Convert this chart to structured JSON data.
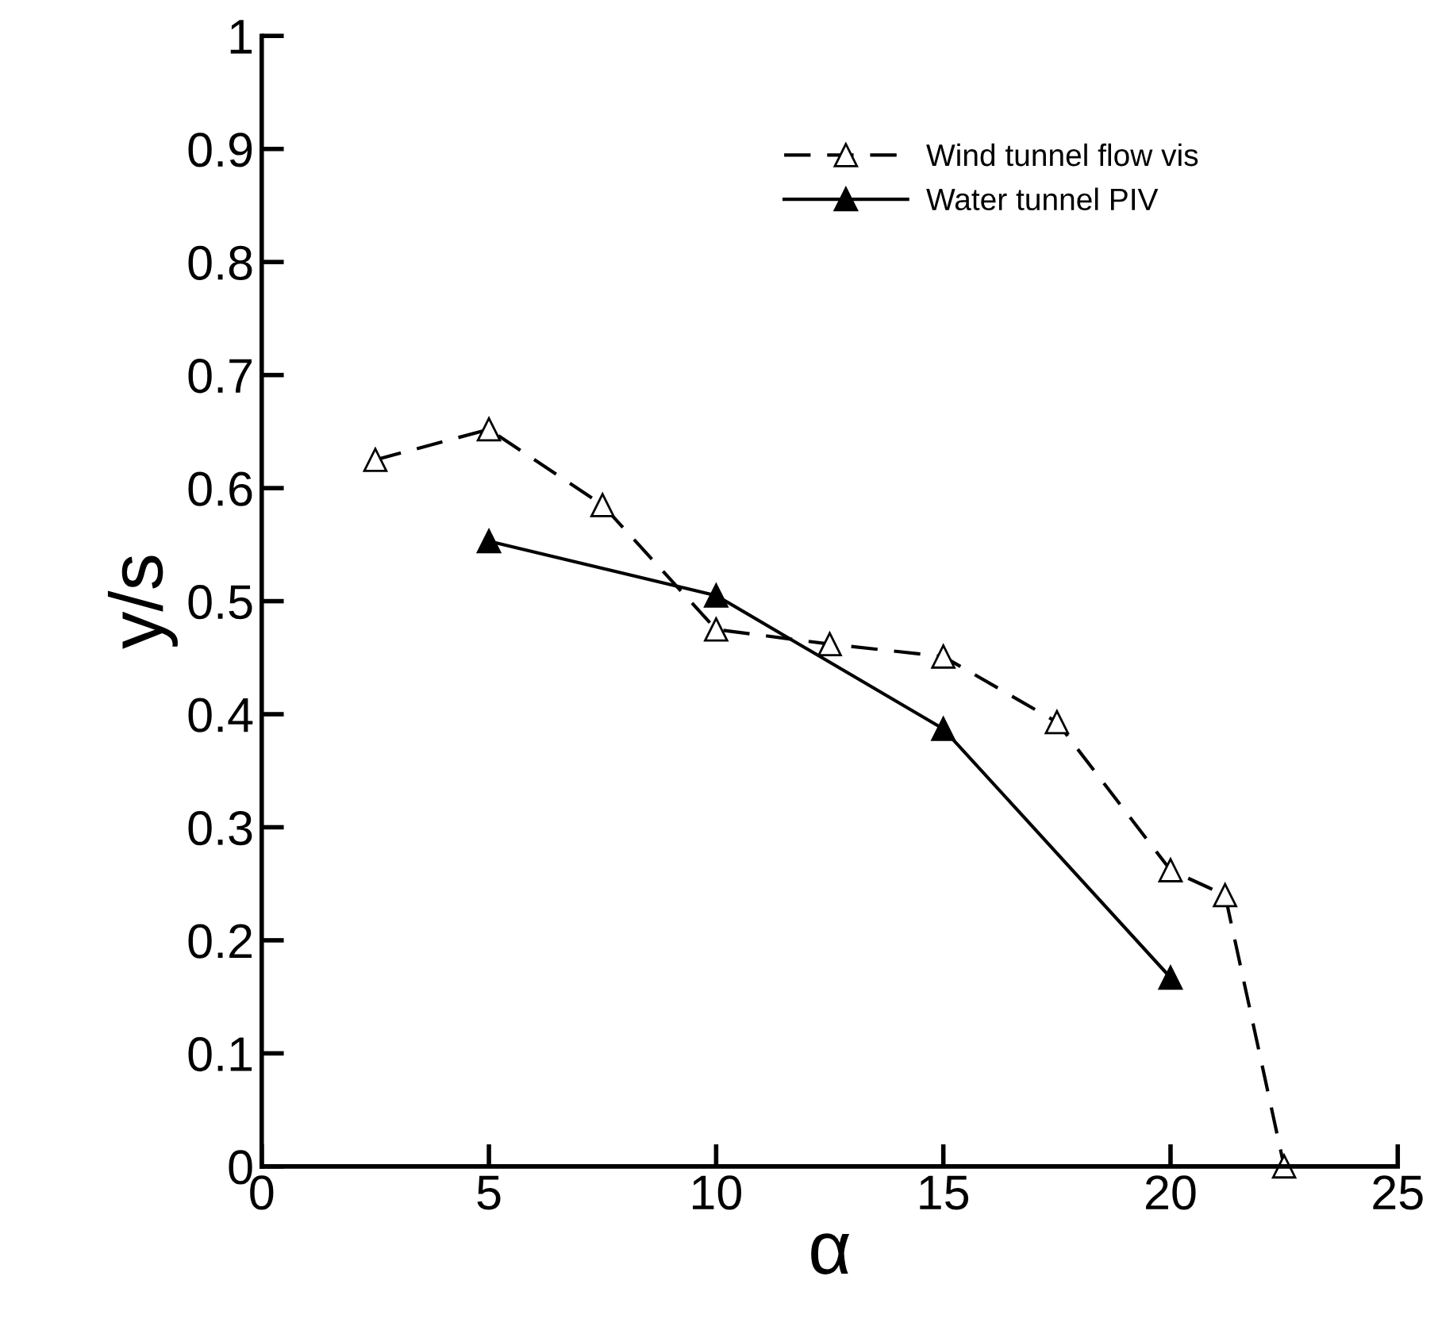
{
  "chart_data": {
    "type": "line",
    "xlabel": "α",
    "ylabel": "y/s",
    "xlim": [
      0,
      25
    ],
    "ylim": [
      0,
      1
    ],
    "xticks": [
      0,
      5,
      10,
      15,
      20,
      25
    ],
    "yticks": [
      0,
      0.1,
      0.2,
      0.3,
      0.4,
      0.5,
      0.6,
      0.7,
      0.8,
      0.9,
      1
    ],
    "grid": false,
    "legend": "top right",
    "marker": "triangle",
    "series": [
      {
        "name": "Wind tunnel flow vis",
        "color": "#000000",
        "line_style": "dashed",
        "x": [
          2.5,
          5,
          7.5,
          10,
          12.5,
          15,
          17.5,
          20,
          21.2,
          22.5
        ],
        "values": [
          0.625,
          0.652,
          0.585,
          0.475,
          0.462,
          0.451,
          0.393,
          0.262,
          0.24,
          0.0
        ]
      },
      {
        "name": "Water tunnel PIV",
        "color": "#000000",
        "line_style": "solid",
        "x": [
          5,
          10,
          15,
          20
        ],
        "values": [
          0.553,
          0.505,
          0.387,
          0.167
        ]
      }
    ]
  }
}
